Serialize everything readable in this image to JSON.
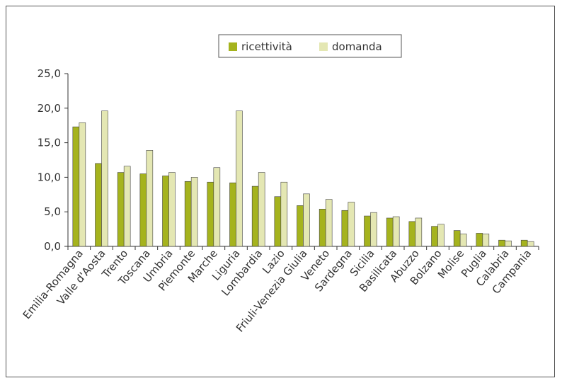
{
  "chart_data": {
    "type": "bar",
    "title": "",
    "xlabel": "",
    "ylabel": "",
    "ylim": [
      0,
      25
    ],
    "yticks": [
      "0,0",
      "5,0",
      "10,0",
      "15,0",
      "20,0",
      "25,0"
    ],
    "ytick_values": [
      0,
      5,
      10,
      15,
      20,
      25
    ],
    "legend_position": "top-center",
    "categories": [
      "Emilia-Romagna",
      "Valle d'Aosta",
      "Trento",
      "Toscana",
      "Umbria",
      "Piemonte",
      "Marche",
      "Liguria",
      "Lombardia",
      "Lazio",
      "Friuli-Venezia Giulia",
      "Veneto",
      "Sardegna",
      "Sicilia",
      "Basilicata",
      "Abuzzo",
      "Bolzano",
      "Molise",
      "Puglia",
      "Calabria",
      "Campania"
    ],
    "series": [
      {
        "name": "ricettività",
        "color": "#a5b31d",
        "values": [
          17.3,
          12.0,
          10.7,
          10.5,
          10.2,
          9.4,
          9.3,
          9.2,
          8.7,
          7.2,
          5.9,
          5.4,
          5.2,
          4.4,
          4.1,
          3.6,
          2.9,
          2.3,
          1.9,
          0.9,
          0.9
        ]
      },
      {
        "name": "domanda",
        "color": "#e4e7b3",
        "values": [
          17.9,
          19.6,
          11.6,
          13.9,
          10.7,
          10.0,
          11.4,
          19.6,
          10.7,
          9.3,
          7.6,
          6.8,
          6.4,
          4.9,
          4.3,
          4.1,
          3.2,
          1.8,
          1.8,
          0.8,
          0.7
        ]
      }
    ]
  }
}
